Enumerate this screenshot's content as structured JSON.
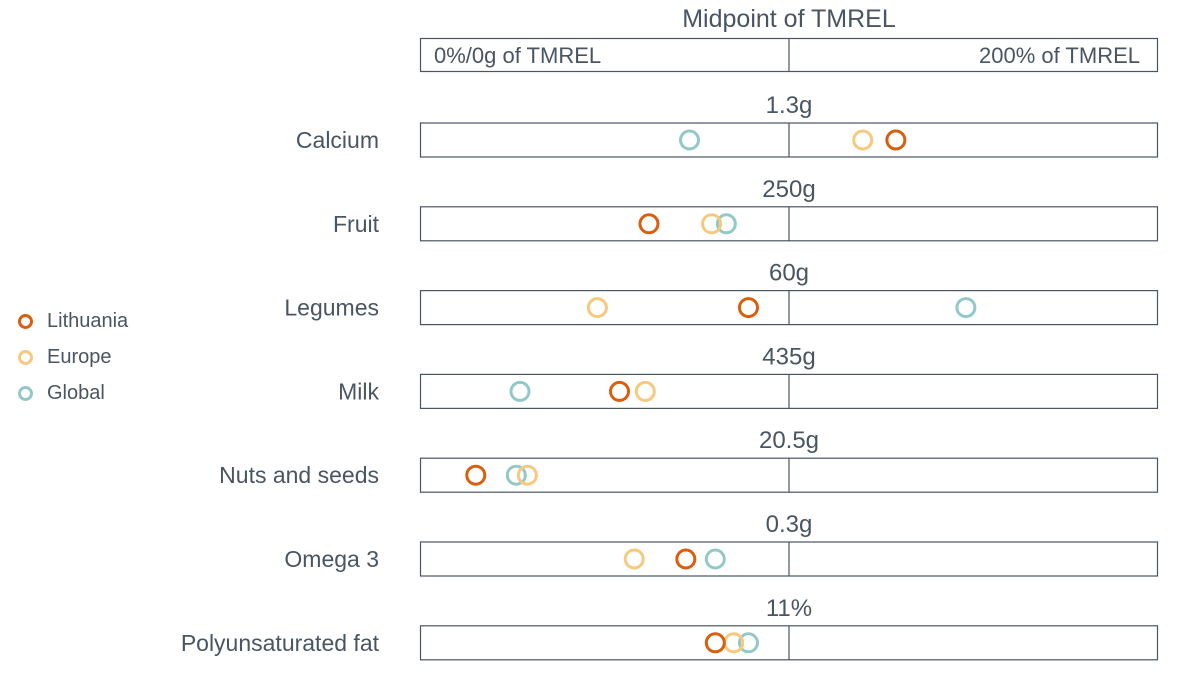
{
  "chart_data": {
    "type": "scatter",
    "title": "Midpoint of TMREL",
    "header_left": "0%/0g of TMREL",
    "header_right": "200% of TMREL",
    "xlim": [
      0,
      200
    ],
    "x_unit": "% of TMREL",
    "series": [
      {
        "name": "Lithuania",
        "color": "#d95f0e"
      },
      {
        "name": "Europe",
        "color": "#f7c97e"
      },
      {
        "name": "Global",
        "color": "#92c9c8"
      }
    ],
    "rows": [
      {
        "category": "Calcium",
        "midpoint": "1.3g",
        "values": {
          "Lithuania": 129,
          "Europe": 120,
          "Global": 73
        }
      },
      {
        "category": "Fruit",
        "midpoint": "250g",
        "values": {
          "Lithuania": 62,
          "Europe": 79,
          "Global": 83
        }
      },
      {
        "category": "Legumes",
        "midpoint": "60g",
        "values": {
          "Lithuania": 89,
          "Europe": 48,
          "Global": 148
        }
      },
      {
        "category": "Milk",
        "midpoint": "435g",
        "values": {
          "Lithuania": 54,
          "Europe": 61,
          "Global": 27
        }
      },
      {
        "category": "Nuts and seeds",
        "midpoint": "20.5g",
        "values": {
          "Lithuania": 15,
          "Europe": 29,
          "Global": 26
        }
      },
      {
        "category": "Omega 3",
        "midpoint": "0.3g",
        "values": {
          "Lithuania": 72,
          "Europe": 58,
          "Global": 80
        }
      },
      {
        "category": "Polyunsaturated fat",
        "midpoint": "11%",
        "values": {
          "Lithuania": 80,
          "Europe": 85,
          "Global": 89
        }
      }
    ]
  }
}
